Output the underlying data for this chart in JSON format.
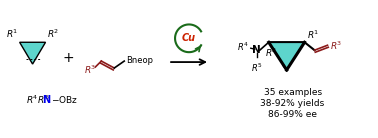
{
  "bg_color": "#ffffff",
  "teal_color": "#5DD5CC",
  "dark_red_color": "#8B1A1A",
  "blue_color": "#0000EE",
  "black_color": "#000000",
  "green_arrow_color": "#1a6b1a",
  "cu_color": "#cc2200",
  "text_stats": [
    "35 examples",
    "38-92% yields",
    "86-99% ee"
  ],
  "figsize": [
    3.78,
    1.38
  ],
  "dpi": 100
}
